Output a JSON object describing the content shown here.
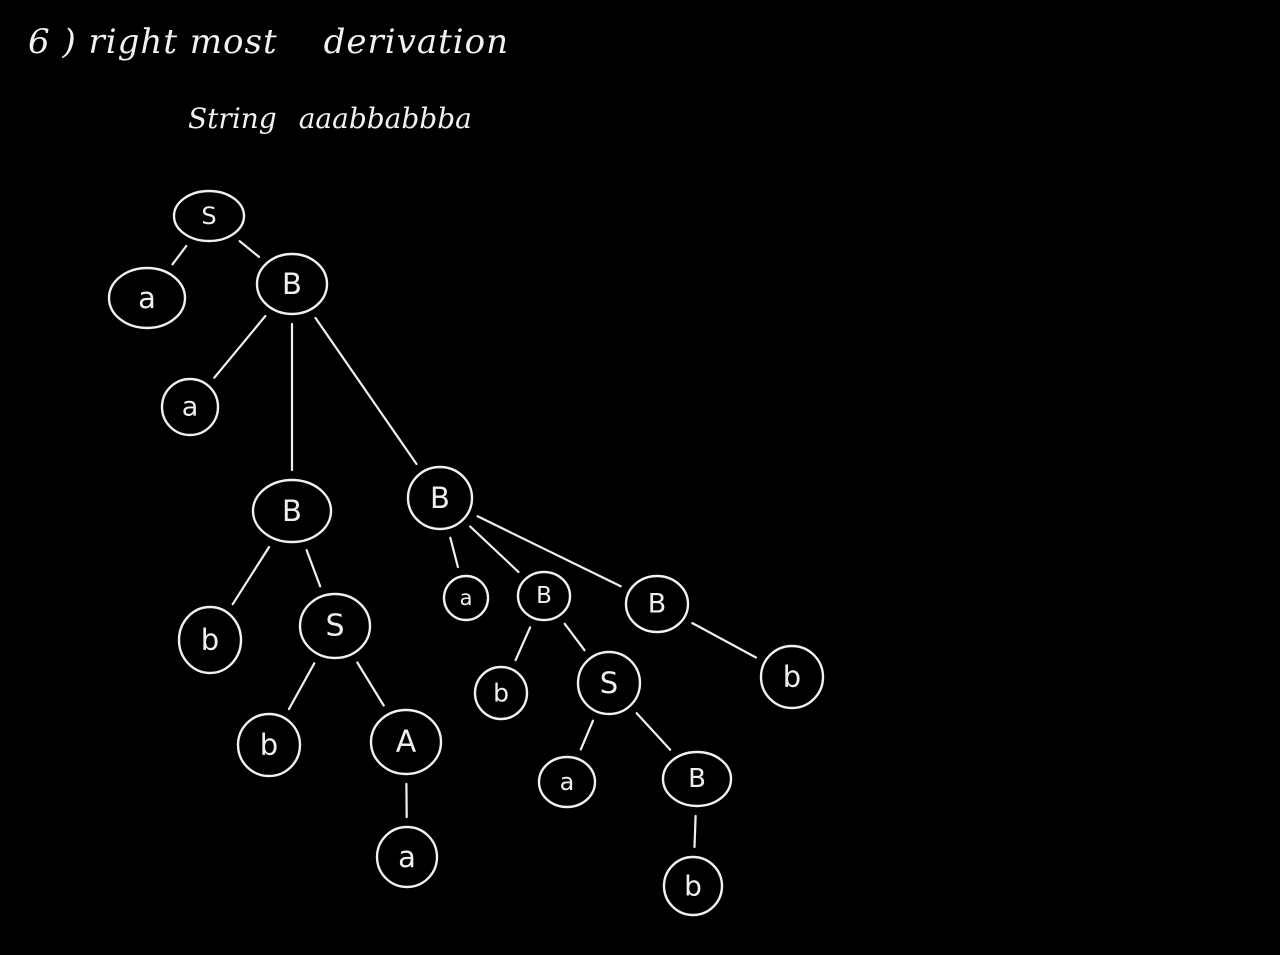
{
  "heading": {
    "number": "6 )",
    "title": "right most",
    "title2": "derivation"
  },
  "string_line": {
    "label": "String",
    "value": "aaabbabbba"
  },
  "colors": {
    "background": "#000000",
    "ink": "#f0f0f0"
  },
  "parse_tree": {
    "nodes": [
      {
        "id": "n1",
        "label": "S"
      },
      {
        "id": "n2",
        "label": "a"
      },
      {
        "id": "n3",
        "label": "B"
      },
      {
        "id": "n4",
        "label": "a"
      },
      {
        "id": "n5",
        "label": "B"
      },
      {
        "id": "n6",
        "label": "B"
      },
      {
        "id": "n7",
        "label": "b"
      },
      {
        "id": "n8",
        "label": "S"
      },
      {
        "id": "n9",
        "label": "b"
      },
      {
        "id": "n10",
        "label": "A"
      },
      {
        "id": "n11",
        "label": "a"
      },
      {
        "id": "n12",
        "label": "a"
      },
      {
        "id": "n13",
        "label": "B"
      },
      {
        "id": "n14",
        "label": "B"
      },
      {
        "id": "n15",
        "label": "b"
      },
      {
        "id": "n16",
        "label": "S"
      },
      {
        "id": "n17",
        "label": "a"
      },
      {
        "id": "n18",
        "label": "B"
      },
      {
        "id": "n19",
        "label": "b"
      },
      {
        "id": "n20",
        "label": "b"
      }
    ],
    "edges": [
      [
        "n1",
        "n2"
      ],
      [
        "n1",
        "n3"
      ],
      [
        "n3",
        "n4"
      ],
      [
        "n3",
        "n5"
      ],
      [
        "n3",
        "n6"
      ],
      [
        "n5",
        "n7"
      ],
      [
        "n5",
        "n8"
      ],
      [
        "n8",
        "n9"
      ],
      [
        "n8",
        "n10"
      ],
      [
        "n10",
        "n11"
      ],
      [
        "n6",
        "n12"
      ],
      [
        "n6",
        "n13"
      ],
      [
        "n6",
        "n14"
      ],
      [
        "n13",
        "n15"
      ],
      [
        "n13",
        "n16"
      ],
      [
        "n16",
        "n17"
      ],
      [
        "n16",
        "n18"
      ],
      [
        "n18",
        "n19"
      ],
      [
        "n14",
        "n20"
      ]
    ]
  }
}
